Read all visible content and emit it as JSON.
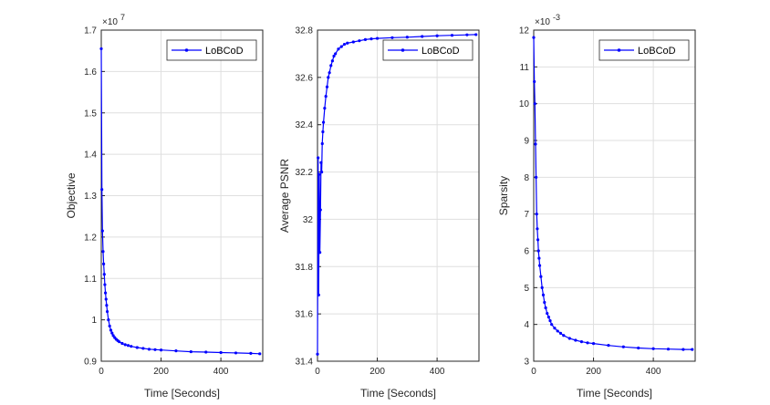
{
  "chart_data": [
    {
      "type": "line",
      "xlabel": "Time [Seconds]",
      "ylabel": "Objective",
      "y_exponent_label": "×10",
      "y_exponent": "7",
      "xlim": [
        0,
        540
      ],
      "ylim": [
        0.9,
        1.7
      ],
      "xticks": [
        "0",
        "200",
        "400"
      ],
      "yticks": [
        "0.9",
        "1",
        "1.1",
        "1.2",
        "1.3",
        "1.4",
        "1.5",
        "1.6",
        "1.7"
      ],
      "grid": true,
      "legend": "top-right",
      "color": "#0000ff",
      "series": [
        {
          "name": "LoBCoD",
          "x": [
            0,
            2,
            4,
            6,
            8,
            10,
            12,
            14,
            16,
            18,
            20,
            24,
            28,
            32,
            36,
            40,
            45,
            50,
            55,
            60,
            70,
            80,
            90,
            100,
            120,
            140,
            160,
            180,
            200,
            250,
            300,
            350,
            400,
            450,
            500,
            530
          ],
          "y": [
            1.655,
            1.315,
            1.215,
            1.165,
            1.135,
            1.11,
            1.085,
            1.065,
            1.05,
            1.035,
            1.02,
            1.0,
            0.985,
            0.975,
            0.968,
            0.962,
            0.957,
            0.953,
            0.95,
            0.947,
            0.943,
            0.94,
            0.938,
            0.936,
            0.933,
            0.931,
            0.929,
            0.928,
            0.927,
            0.925,
            0.923,
            0.922,
            0.921,
            0.92,
            0.919,
            0.918
          ]
        }
      ]
    },
    {
      "type": "line",
      "xlabel": "Time [Seconds]",
      "ylabel": "Average PSNR",
      "xlim": [
        0,
        540
      ],
      "ylim": [
        31.4,
        32.8
      ],
      "xticks": [
        "0",
        "200",
        "400"
      ],
      "yticks": [
        "31.4",
        "31.6",
        "31.8",
        "32",
        "32.2",
        "32.4",
        "32.6",
        "32.8"
      ],
      "grid": true,
      "legend": "top-right",
      "color": "#0000ff",
      "series": [
        {
          "name": "LoBCoD",
          "x": [
            0,
            2,
            4,
            6,
            8,
            10,
            12,
            14,
            16,
            18,
            20,
            24,
            28,
            32,
            36,
            40,
            45,
            50,
            55,
            60,
            70,
            80,
            90,
            100,
            120,
            140,
            160,
            180,
            200,
            250,
            300,
            350,
            400,
            450,
            500,
            530
          ],
          "y": [
            31.43,
            32.26,
            31.68,
            32.19,
            31.86,
            32.04,
            32.24,
            32.2,
            32.32,
            32.37,
            32.41,
            32.47,
            32.52,
            32.56,
            32.6,
            32.62,
            32.65,
            32.67,
            32.69,
            32.7,
            32.72,
            32.73,
            32.74,
            32.745,
            32.75,
            32.755,
            32.76,
            32.763,
            32.765,
            32.768,
            32.77,
            32.773,
            32.776,
            32.778,
            32.78,
            32.781
          ]
        }
      ]
    },
    {
      "type": "line",
      "xlabel": "Time [Seconds]",
      "ylabel": "Sparsity",
      "y_exponent_label": "×10",
      "y_exponent": "-3",
      "xlim": [
        0,
        540
      ],
      "ylim": [
        3,
        12
      ],
      "xticks": [
        "0",
        "200",
        "400"
      ],
      "yticks": [
        "3",
        "4",
        "5",
        "6",
        "7",
        "8",
        "9",
        "10",
        "11",
        "12"
      ],
      "grid": true,
      "legend": "top-right",
      "color": "#0000ff",
      "series": [
        {
          "name": "LoBCoD",
          "x": [
            0,
            2,
            4,
            6,
            8,
            10,
            12,
            14,
            16,
            18,
            20,
            24,
            28,
            32,
            36,
            40,
            45,
            50,
            55,
            60,
            70,
            80,
            90,
            100,
            120,
            140,
            160,
            180,
            200,
            250,
            300,
            350,
            400,
            450,
            500,
            530
          ],
          "y": [
            11.8,
            10.6,
            10.0,
            8.9,
            8.0,
            7.0,
            6.6,
            6.3,
            6.0,
            5.8,
            5.6,
            5.3,
            5.0,
            4.8,
            4.6,
            4.45,
            4.3,
            4.2,
            4.1,
            4.0,
            3.9,
            3.82,
            3.76,
            3.7,
            3.62,
            3.57,
            3.53,
            3.5,
            3.48,
            3.43,
            3.39,
            3.36,
            3.34,
            3.33,
            3.32,
            3.32
          ]
        }
      ]
    }
  ]
}
